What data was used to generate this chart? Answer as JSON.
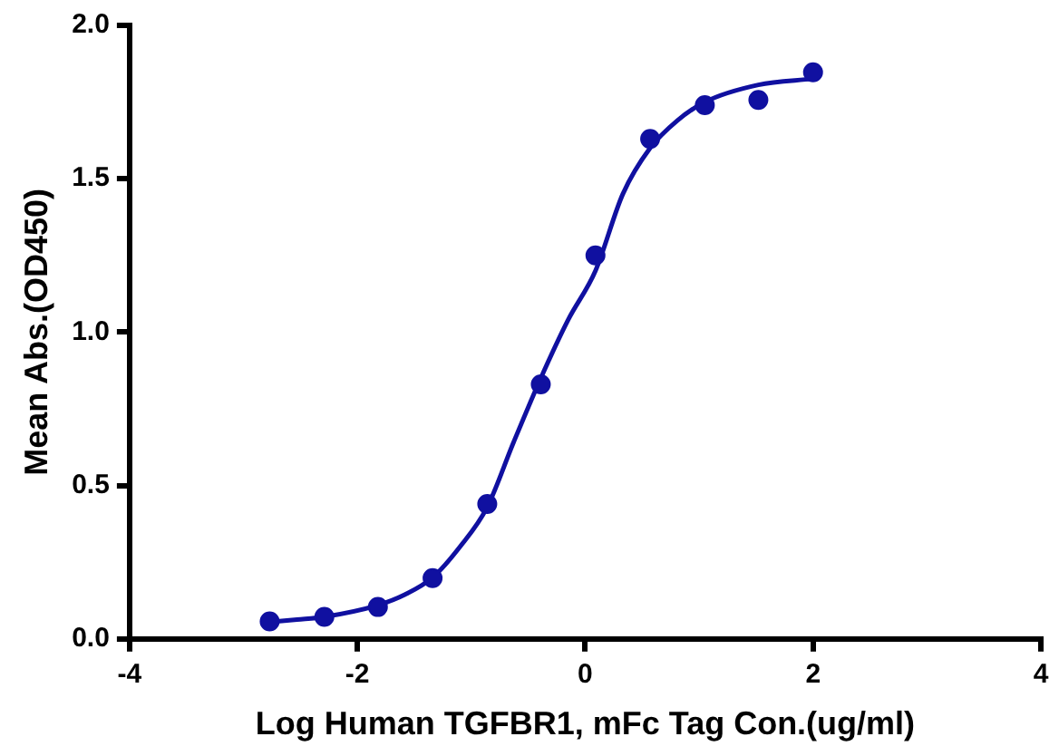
{
  "chart_data": {
    "type": "scatter",
    "xlabel": "Log Human TGFBR1, mFc Tag Con.(ug/ml)",
    "ylabel": "Mean Abs.(OD450)",
    "xlim": [
      -4,
      4
    ],
    "xticks": [
      -4,
      -2,
      0,
      2,
      4
    ],
    "ylim": [
      0,
      2
    ],
    "yticks": [
      {
        "value": 0,
        "label": "0.0"
      },
      {
        "value": 0.5,
        "label": "0.5"
      },
      {
        "value": 1,
        "label": "1.0"
      },
      {
        "value": 1.5,
        "label": "1.5"
      },
      {
        "value": 2,
        "label": "2.0"
      }
    ],
    "grid": false,
    "legend": false,
    "marker": "circle",
    "series": [
      {
        "type": "scatter",
        "color": "#1010a0",
        "x": [
          -2.77,
          -2.29,
          -1.82,
          -1.34,
          -0.86,
          -0.39,
          0.09,
          0.57,
          1.05,
          1.52,
          2.0
        ],
        "values": [
          0.057,
          0.072,
          0.104,
          0.198,
          0.44,
          0.83,
          1.25,
          1.63,
          1.74,
          1.757,
          1.847
        ]
      },
      {
        "type": "line",
        "color": "#1010a0",
        "marker": "none",
        "line_style": "solid",
        "x": [
          -2.77,
          -2.53,
          -2.29,
          -1.82,
          -1.58,
          -1.34,
          -1.1,
          -0.86,
          -0.63,
          -0.39,
          -0.15,
          0.09,
          0.33,
          0.57,
          0.81,
          1.05,
          1.52,
          2.0
        ],
        "values": [
          0.055,
          0.063,
          0.072,
          0.11,
          0.145,
          0.2,
          0.3,
          0.43,
          0.64,
          0.85,
          1.04,
          1.2,
          1.45,
          1.6,
          1.69,
          1.75,
          1.806,
          1.826
        ]
      }
    ]
  }
}
